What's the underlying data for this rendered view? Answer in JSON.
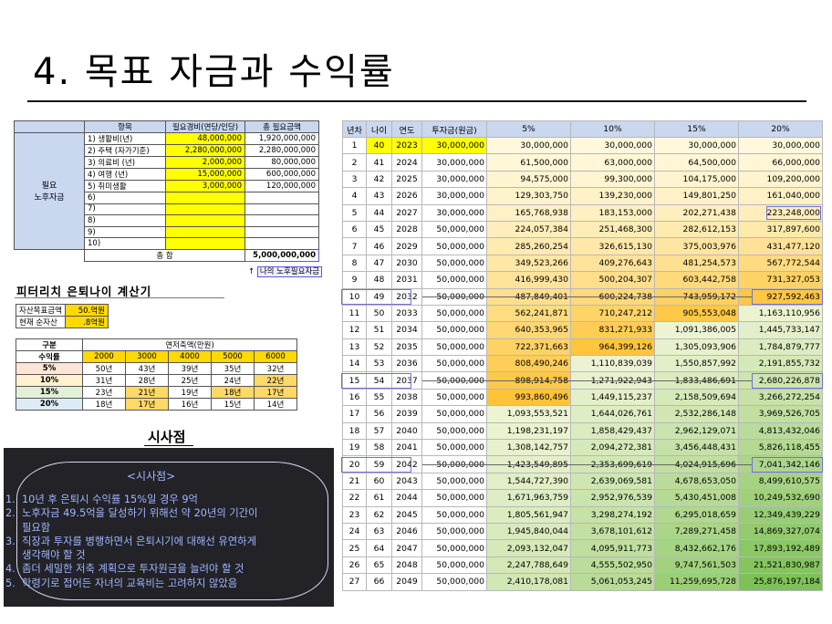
{
  "title": "4. 목표 자금과 수익률",
  "needs": {
    "side_label_1": "필요",
    "side_label_2": "노후자금",
    "headers": [
      "항목",
      "필요경비(연당/인당)",
      "총 필요금액"
    ],
    "rows": [
      [
        "1) 생활비(년)",
        "48,000,000",
        "1,920,000,000"
      ],
      [
        "2) 주택 (자가기준)",
        "2,280,000,000",
        "2,280,000,000"
      ],
      [
        "3) 의료비 (년)",
        "2,000,000",
        "80,000,000"
      ],
      [
        "4) 여행 (년)",
        "15,000,000",
        "600,000,000"
      ],
      [
        "5) 취미생활",
        "3,000,000",
        "120,000,000"
      ],
      [
        "6)",
        "",
        ""
      ],
      [
        "7)",
        "",
        ""
      ],
      [
        "8)",
        "",
        ""
      ],
      [
        "9)",
        "",
        ""
      ],
      [
        "10)",
        "",
        ""
      ]
    ],
    "total_label": "총 합",
    "total_value": "5,000,000,000",
    "my_needed_arrow": "↑",
    "my_needed": "나의 노후필요자금"
  },
  "calc": {
    "title": "피터리치 은퇴나이 계산기",
    "target_label": "자산목표금액",
    "target_value": "50.억원",
    "current_label": "현재 순자산",
    "current_value": ".8억원"
  },
  "years_table": {
    "group_label": "구분",
    "group_header": "연저축액(만원)",
    "rate_label": "수익률",
    "savings": [
      "2000",
      "3000",
      "4000",
      "5000",
      "6000"
    ],
    "rows": [
      {
        "rate": "5%",
        "vals": [
          "50년",
          "43년",
          "39년",
          "35년",
          "32년"
        ],
        "hl": [
          false,
          false,
          false,
          false,
          false
        ]
      },
      {
        "rate": "10%",
        "vals": [
          "31년",
          "28년",
          "25년",
          "24년",
          "22년"
        ],
        "hl": [
          false,
          false,
          false,
          false,
          true
        ]
      },
      {
        "rate": "15%",
        "vals": [
          "23년",
          "21년",
          "19년",
          "18년",
          "17년"
        ],
        "hl": [
          false,
          true,
          false,
          true,
          true
        ]
      },
      {
        "rate": "20%",
        "vals": [
          "18년",
          "17년",
          "16년",
          "15년",
          "14년"
        ],
        "hl": [
          false,
          true,
          false,
          false,
          false
        ]
      }
    ]
  },
  "insight": {
    "heading": "시사점",
    "panel_title": "<시사점>",
    "items": [
      "1.  10년 후 은퇴시 수익률 15%일 경우 9억",
      "2.  노후자금 49.5억을 달성하기 위해선 약 20년의 기간이",
      "     필요함",
      "3.  직장과 투자를 병행하면서 은퇴시기에 대해선 유연하게",
      "     생각해야 할 것",
      "4.  좀더 세밀한 저축 계획으로 투자원금을 늘려야 할 것",
      "5.  학령기로 접어든 자녀의 교육비는 고려하지 않았음"
    ]
  },
  "growth": {
    "headers": [
      "년차",
      "나이",
      "연도",
      "투자금(원금)",
      "5%",
      "10%",
      "15%",
      "20%"
    ],
    "rows": [
      [
        "1",
        "40",
        "2023",
        "30,000,000",
        "30,000,000",
        "30,000,000",
        "30,000,000",
        "30,000,000"
      ],
      [
        "2",
        "41",
        "2024",
        "30,000,000",
        "61,500,000",
        "63,000,000",
        "64,500,000",
        "66,000,000"
      ],
      [
        "3",
        "42",
        "2025",
        "30,000,000",
        "94,575,000",
        "99,300,000",
        "104,175,000",
        "109,200,000"
      ],
      [
        "4",
        "43",
        "2026",
        "30,000,000",
        "129,303,750",
        "139,230,000",
        "149,801,250",
        "161,040,000"
      ],
      [
        "5",
        "44",
        "2027",
        "30,000,000",
        "165,768,938",
        "183,153,000",
        "202,271,438",
        "223,248,000"
      ],
      [
        "6",
        "45",
        "2028",
        "50,000,000",
        "224,057,384",
        "251,468,300",
        "282,612,153",
        "317,897,600"
      ],
      [
        "7",
        "46",
        "2029",
        "50,000,000",
        "285,260,254",
        "326,615,130",
        "375,003,976",
        "431,477,120"
      ],
      [
        "8",
        "47",
        "2030",
        "50,000,000",
        "349,523,266",
        "409,276,643",
        "481,254,573",
        "567,772,544"
      ],
      [
        "9",
        "48",
        "2031",
        "50,000,000",
        "416,999,430",
        "500,204,307",
        "603,442,758",
        "731,327,053"
      ],
      [
        "10",
        "49",
        "2032",
        "50,000,000",
        "487,849,401",
        "600,224,738",
        "743,959,172",
        "927,592,463"
      ],
      [
        "11",
        "50",
        "2033",
        "50,000,000",
        "562,241,871",
        "710,247,212",
        "905,553,048",
        "1,163,110,956"
      ],
      [
        "12",
        "51",
        "2034",
        "50,000,000",
        "640,353,965",
        "831,271,933",
        "1,091,386,005",
        "1,445,733,147"
      ],
      [
        "13",
        "52",
        "2035",
        "50,000,000",
        "722,371,663",
        "964,399,126",
        "1,305,093,906",
        "1,784,879,777"
      ],
      [
        "14",
        "53",
        "2036",
        "50,000,000",
        "808,490,246",
        "1,110,839,039",
        "1,550,857,992",
        "2,191,855,732"
      ],
      [
        "15",
        "54",
        "2037",
        "50,000,000",
        "898,914,758",
        "1,271,922,943",
        "1,833,486,691",
        "2,680,226,878"
      ],
      [
        "16",
        "55",
        "2038",
        "50,000,000",
        "993,860,496",
        "1,449,115,237",
        "2,158,509,694",
        "3,266,272,254"
      ],
      [
        "17",
        "56",
        "2039",
        "50,000,000",
        "1,093,553,521",
        "1,644,026,761",
        "2,532,286,148",
        "3,969,526,705"
      ],
      [
        "18",
        "57",
        "2040",
        "50,000,000",
        "1,198,231,197",
        "1,858,429,437",
        "2,962,129,071",
        "4,813,432,046"
      ],
      [
        "19",
        "58",
        "2041",
        "50,000,000",
        "1,308,142,757",
        "2,094,272,381",
        "3,456,448,431",
        "5,826,118,455"
      ],
      [
        "20",
        "59",
        "2042",
        "50,000,000",
        "1,423,549,895",
        "2,353,699,619",
        "4,024,915,696",
        "7,041,342,146"
      ],
      [
        "21",
        "60",
        "2043",
        "50,000,000",
        "1,544,727,390",
        "2,639,069,581",
        "4,678,653,050",
        "8,499,610,575"
      ],
      [
        "22",
        "61",
        "2044",
        "50,000,000",
        "1,671,963,759",
        "2,952,976,539",
        "5,430,451,008",
        "10,249,532,690"
      ],
      [
        "23",
        "62",
        "2045",
        "50,000,000",
        "1,805,561,947",
        "3,298,274,192",
        "6,295,018,659",
        "12,349,439,229"
      ],
      [
        "24",
        "63",
        "2046",
        "50,000,000",
        "1,945,840,044",
        "3,678,101,612",
        "7,289,271,458",
        "14,869,327,074"
      ],
      [
        "25",
        "64",
        "2047",
        "50,000,000",
        "2,093,132,047",
        "4,095,911,773",
        "8,432,662,176",
        "17,893,192,489"
      ],
      [
        "26",
        "65",
        "2048",
        "50,000,000",
        "2,247,788,649",
        "4,555,502,950",
        "9,747,561,503",
        "21,521,830,987"
      ],
      [
        "27",
        "66",
        "2049",
        "50,000,000",
        "2,410,178,081",
        "5,061,053,245",
        "11,259,695,728",
        "25,876,197,184"
      ]
    ]
  }
}
